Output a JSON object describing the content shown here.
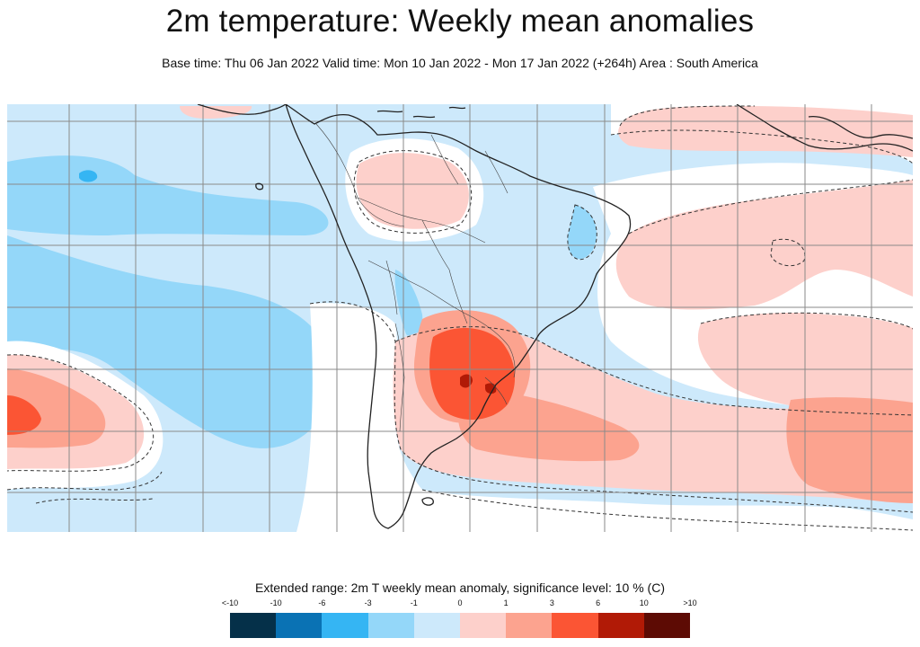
{
  "title": "2m temperature: Weekly mean anomalies",
  "subtitle": "Base time: Thu 06 Jan 2022 Valid time: Mon 10 Jan 2022 - Mon 17 Jan 2022 (+264h) Area : South America",
  "legend": {
    "title": "Extended range: 2m T weekly mean anomaly, significance level: 10 % (C)",
    "tick_labels": [
      "<-10",
      "-10",
      "-6",
      "-3",
      "-1",
      "0",
      "1",
      "3",
      "6",
      "10",
      ">10"
    ],
    "colors": [
      "#053049",
      "#0a72b4",
      "#35b5f3",
      "#94d7f9",
      "#cde9fb",
      "#ffffff",
      "#fdd0cb",
      "#fca38f",
      "#fb5534",
      "#b11a06",
      "#5d0b04"
    ]
  },
  "map": {
    "area": "South America",
    "field": "2m temperature weekly mean anomaly",
    "units": "C",
    "significance_contour": "dashed",
    "colors": {
      "ocean_background": "#cde9fb",
      "neg_1_3": "#94d7f9",
      "neg_3_6": "#35b5f3",
      "neutral": "#ffffff",
      "pos_1_3": "#fdd0cb",
      "pos_3_6": "#fca38f",
      "pos_6_10": "#fb5534",
      "pos_10": "#b11a06",
      "coastline": "#222222",
      "borders": "#444444",
      "grid": "#8a8a8a"
    }
  }
}
